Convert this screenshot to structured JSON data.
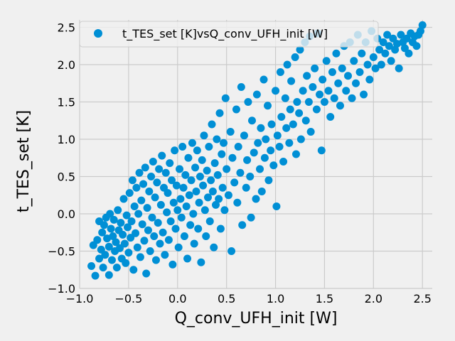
{
  "chart_data": {
    "type": "scatter",
    "title": "",
    "xlabel": "Q_conv_UFH_init [W]",
    "ylabel": "t_TES_set [K]",
    "xlim": [
      -1.0,
      2.6
    ],
    "ylim": [
      -1.0,
      2.6
    ],
    "xticks": [
      -1.0,
      -0.5,
      0.0,
      0.5,
      1.0,
      1.5,
      2.0,
      2.5
    ],
    "yticks": [
      -1.0,
      -0.5,
      0.0,
      0.5,
      1.0,
      1.5,
      2.0,
      2.5
    ],
    "xtick_labels": [
      "−1.0",
      "−0.5",
      "0.0",
      "0.5",
      "1.0",
      "1.5",
      "2.0",
      "2.5"
    ],
    "ytick_labels": [
      "−1.0",
      "−0.5",
      "0.0",
      "0.5",
      "1.0",
      "1.5",
      "2.0",
      "2.5"
    ],
    "grid": true,
    "legend_position": "top-left",
    "series": [
      {
        "name": "t_TES_set [K]vsQ_conv_UFH_init [W]",
        "color": "#008fd5",
        "points": [
          [
            -0.88,
            -0.7
          ],
          [
            -0.86,
            -0.42
          ],
          [
            -0.84,
            -0.83
          ],
          [
            -0.82,
            -0.35
          ],
          [
            -0.8,
            -0.6
          ],
          [
            -0.8,
            -0.1
          ],
          [
            -0.78,
            -0.48
          ],
          [
            -0.77,
            -0.25
          ],
          [
            -0.76,
            -0.72
          ],
          [
            -0.75,
            -0.15
          ],
          [
            -0.74,
            -0.55
          ],
          [
            -0.73,
            -0.05
          ],
          [
            -0.72,
            -0.33
          ],
          [
            -0.7,
            -0.82
          ],
          [
            -0.7,
            -0.44
          ],
          [
            -0.69,
            0.0
          ],
          [
            -0.68,
            -0.2
          ],
          [
            -0.67,
            -0.62
          ],
          [
            -0.66,
            -0.3
          ],
          [
            -0.65,
            -0.08
          ],
          [
            -0.64,
            -0.5
          ],
          [
            -0.63,
            -0.38
          ],
          [
            -0.62,
            -0.72
          ],
          [
            -0.61,
            0.05
          ],
          [
            -0.6,
            -0.22
          ],
          [
            -0.59,
            -0.46
          ],
          [
            -0.58,
            -0.12
          ],
          [
            -0.57,
            -0.6
          ],
          [
            -0.56,
            -0.28
          ],
          [
            -0.55,
            0.2
          ],
          [
            -0.54,
            -0.4
          ],
          [
            -0.53,
            -0.66
          ],
          [
            -0.52,
            -0.02
          ],
          [
            -0.51,
            -0.18
          ],
          [
            -0.5,
            -0.52
          ],
          [
            -0.49,
            0.28
          ],
          [
            -0.48,
            -0.32
          ],
          [
            -0.47,
            -0.1
          ],
          [
            -0.46,
            0.45
          ],
          [
            -0.45,
            -0.75
          ],
          [
            -0.44,
            0.1
          ],
          [
            -0.43,
            -0.26
          ],
          [
            -0.42,
            0.35
          ],
          [
            -0.41,
            -0.45
          ],
          [
            -0.4,
            0.0
          ],
          [
            -0.39,
            0.55
          ],
          [
            -0.38,
            -0.58
          ],
          [
            -0.37,
            0.18
          ],
          [
            -0.36,
            -0.14
          ],
          [
            -0.35,
            0.4
          ],
          [
            -0.34,
            -0.36
          ],
          [
            -0.33,
            0.62
          ],
          [
            -0.32,
            -0.8
          ],
          [
            -0.31,
            0.08
          ],
          [
            -0.3,
            -0.22
          ],
          [
            -0.29,
            0.3
          ],
          [
            -0.28,
            -0.5
          ],
          [
            -0.27,
            0.5
          ],
          [
            -0.26,
            -0.05
          ],
          [
            -0.25,
            0.7
          ],
          [
            -0.24,
            -0.3
          ],
          [
            -0.23,
            0.22
          ],
          [
            -0.22,
            -0.62
          ],
          [
            -0.21,
            0.42
          ],
          [
            -0.2,
            -0.12
          ],
          [
            -0.19,
            0.6
          ],
          [
            -0.18,
            -0.4
          ],
          [
            -0.17,
            0.12
          ],
          [
            -0.16,
            0.78
          ],
          [
            -0.15,
            -0.25
          ],
          [
            -0.14,
            0.35
          ],
          [
            -0.13,
            -0.55
          ],
          [
            -0.12,
            0.55
          ],
          [
            -0.11,
            0.02
          ],
          [
            -0.1,
            0.28
          ],
          [
            -0.09,
            -0.35
          ],
          [
            -0.08,
            0.68
          ],
          [
            -0.07,
            -0.1
          ],
          [
            -0.06,
            0.45
          ],
          [
            -0.05,
            -0.68
          ],
          [
            -0.04,
            0.15
          ],
          [
            -0.03,
            0.85
          ],
          [
            -0.02,
            -0.2
          ],
          [
            -0.01,
            0.38
          ],
          [
            0.0,
            0.05
          ],
          [
            0.01,
            -0.45
          ],
          [
            0.02,
            0.6
          ],
          [
            0.03,
            0.2
          ],
          [
            0.04,
            -0.05
          ],
          [
            0.05,
            0.9
          ],
          [
            0.06,
            0.35
          ],
          [
            0.07,
            -0.3
          ],
          [
            0.08,
            0.52
          ],
          [
            0.09,
            0.1
          ],
          [
            0.1,
            -0.6
          ],
          [
            0.11,
            0.75
          ],
          [
            0.12,
            0.25
          ],
          [
            0.13,
            -0.15
          ],
          [
            0.14,
            0.45
          ],
          [
            0.15,
            0.95
          ],
          [
            0.16,
            0.0
          ],
          [
            0.17,
            -0.4
          ],
          [
            0.18,
            0.62
          ],
          [
            0.19,
            0.3
          ],
          [
            0.2,
            0.85
          ],
          [
            0.21,
            -0.2
          ],
          [
            0.22,
            0.15
          ],
          [
            0.23,
            0.5
          ],
          [
            0.24,
            -0.65
          ],
          [
            0.25,
            0.72
          ],
          [
            0.26,
            0.38
          ],
          [
            0.27,
            1.05
          ],
          [
            0.28,
            0.05
          ],
          [
            0.29,
            -0.3
          ],
          [
            0.3,
            0.58
          ],
          [
            0.31,
            0.22
          ],
          [
            0.32,
            0.9
          ],
          [
            0.33,
            -0.1
          ],
          [
            0.34,
            0.45
          ],
          [
            0.35,
            1.2
          ],
          [
            0.36,
            0.3
          ],
          [
            0.37,
            -0.45
          ],
          [
            0.38,
            0.68
          ],
          [
            0.39,
            0.12
          ],
          [
            0.4,
            1.0
          ],
          [
            0.41,
            0.52
          ],
          [
            0.42,
            0.2
          ],
          [
            0.43,
            1.35
          ],
          [
            0.44,
            -0.2
          ],
          [
            0.45,
            0.8
          ],
          [
            0.46,
            0.35
          ],
          [
            0.47,
            0.95
          ],
          [
            0.48,
            0.05
          ],
          [
            0.49,
            1.55
          ],
          [
            0.5,
            0.6
          ],
          [
            0.52,
            0.25
          ],
          [
            0.54,
            1.1
          ],
          [
            0.55,
            -0.5
          ],
          [
            0.56,
            0.75
          ],
          [
            0.58,
            0.42
          ],
          [
            0.6,
            1.4
          ],
          [
            0.61,
            0.15
          ],
          [
            0.62,
            0.9
          ],
          [
            0.64,
            0.55
          ],
          [
            0.65,
            1.7
          ],
          [
            0.66,
            -0.15
          ],
          [
            0.68,
            1.05
          ],
          [
            0.7,
            0.35
          ],
          [
            0.71,
            0.72
          ],
          [
            0.72,
            1.5
          ],
          [
            0.74,
            0.5
          ],
          [
            0.75,
            -0.05
          ],
          [
            0.76,
            1.25
          ],
          [
            0.78,
            0.82
          ],
          [
            0.8,
            0.2
          ],
          [
            0.81,
            1.6
          ],
          [
            0.82,
            0.95
          ],
          [
            0.84,
            0.6
          ],
          [
            0.85,
            1.15
          ],
          [
            0.86,
            0.3
          ],
          [
            0.88,
            1.8
          ],
          [
            0.89,
            0.75
          ],
          [
            0.9,
            1.0
          ],
          [
            0.92,
            1.45
          ],
          [
            0.93,
            0.45
          ],
          [
            0.95,
            0.85
          ],
          [
            0.96,
            1.2
          ],
          [
            0.98,
            0.65
          ],
          [
            1.0,
            1.65
          ],
          [
            1.01,
            0.1
          ],
          [
            1.02,
            1.05
          ],
          [
            1.04,
            0.9
          ],
          [
            1.05,
            1.9
          ],
          [
            1.06,
            1.3
          ],
          [
            1.08,
            0.7
          ],
          [
            1.1,
            1.55
          ],
          [
            1.11,
            1.15
          ],
          [
            1.12,
            2.0
          ],
          [
            1.14,
            0.95
          ],
          [
            1.15,
            1.4
          ],
          [
            1.16,
            1.78
          ],
          [
            1.18,
            1.2
          ],
          [
            1.2,
            2.1
          ],
          [
            1.21,
            0.8
          ],
          [
            1.22,
            1.5
          ],
          [
            1.24,
            1.35
          ],
          [
            1.25,
            2.2
          ],
          [
            1.26,
            1.0
          ],
          [
            1.28,
            1.65
          ],
          [
            1.3,
            2.3
          ],
          [
            1.31,
            1.25
          ],
          [
            1.32,
            1.85
          ],
          [
            1.34,
            1.5
          ],
          [
            1.35,
            2.38
          ],
          [
            1.36,
            1.1
          ],
          [
            1.38,
            1.7
          ],
          [
            1.4,
            1.95
          ],
          [
            1.42,
            1.4
          ],
          [
            1.43,
            2.42
          ],
          [
            1.45,
            1.6
          ],
          [
            1.47,
            0.85
          ],
          [
            1.48,
            1.8
          ],
          [
            1.5,
            1.5
          ],
          [
            1.52,
            2.05
          ],
          [
            1.54,
            1.65
          ],
          [
            1.56,
            1.3
          ],
          [
            1.58,
            1.9
          ],
          [
            1.6,
            1.55
          ],
          [
            1.62,
            2.15
          ],
          [
            1.64,
            1.75
          ],
          [
            1.66,
            1.45
          ],
          [
            1.68,
            1.95
          ],
          [
            1.7,
            2.25
          ],
          [
            1.72,
            1.65
          ],
          [
            1.74,
            1.85
          ],
          [
            1.76,
            2.3
          ],
          [
            1.78,
            1.55
          ],
          [
            1.8,
            2.05
          ],
          [
            1.82,
            1.75
          ],
          [
            1.84,
            2.4
          ],
          [
            1.86,
            1.9
          ],
          [
            1.88,
            2.15
          ],
          [
            1.9,
            1.6
          ],
          [
            1.92,
            2.3
          ],
          [
            1.94,
            2.0
          ],
          [
            1.96,
            1.8
          ],
          [
            1.98,
            2.45
          ],
          [
            2.0,
            2.1
          ],
          [
            2.02,
            1.95
          ],
          [
            2.04,
            2.35
          ],
          [
            2.06,
            2.2
          ],
          [
            2.08,
            2.0
          ],
          [
            2.1,
            2.3
          ],
          [
            2.12,
            2.15
          ],
          [
            2.14,
            2.4
          ],
          [
            2.16,
            2.25
          ],
          [
            2.18,
            2.05
          ],
          [
            2.2,
            2.35
          ],
          [
            2.22,
            2.2
          ],
          [
            2.24,
            2.28
          ],
          [
            2.26,
            1.95
          ],
          [
            2.28,
            2.4
          ],
          [
            2.3,
            2.3
          ],
          [
            2.32,
            2.22
          ],
          [
            2.34,
            2.35
          ],
          [
            2.36,
            2.15
          ],
          [
            2.38,
            2.42
          ],
          [
            2.4,
            2.3
          ],
          [
            2.42,
            2.38
          ],
          [
            2.44,
            2.25
          ],
          [
            2.46,
            2.4
          ],
          [
            2.48,
            2.45
          ],
          [
            2.5,
            2.53
          ]
        ]
      }
    ]
  }
}
